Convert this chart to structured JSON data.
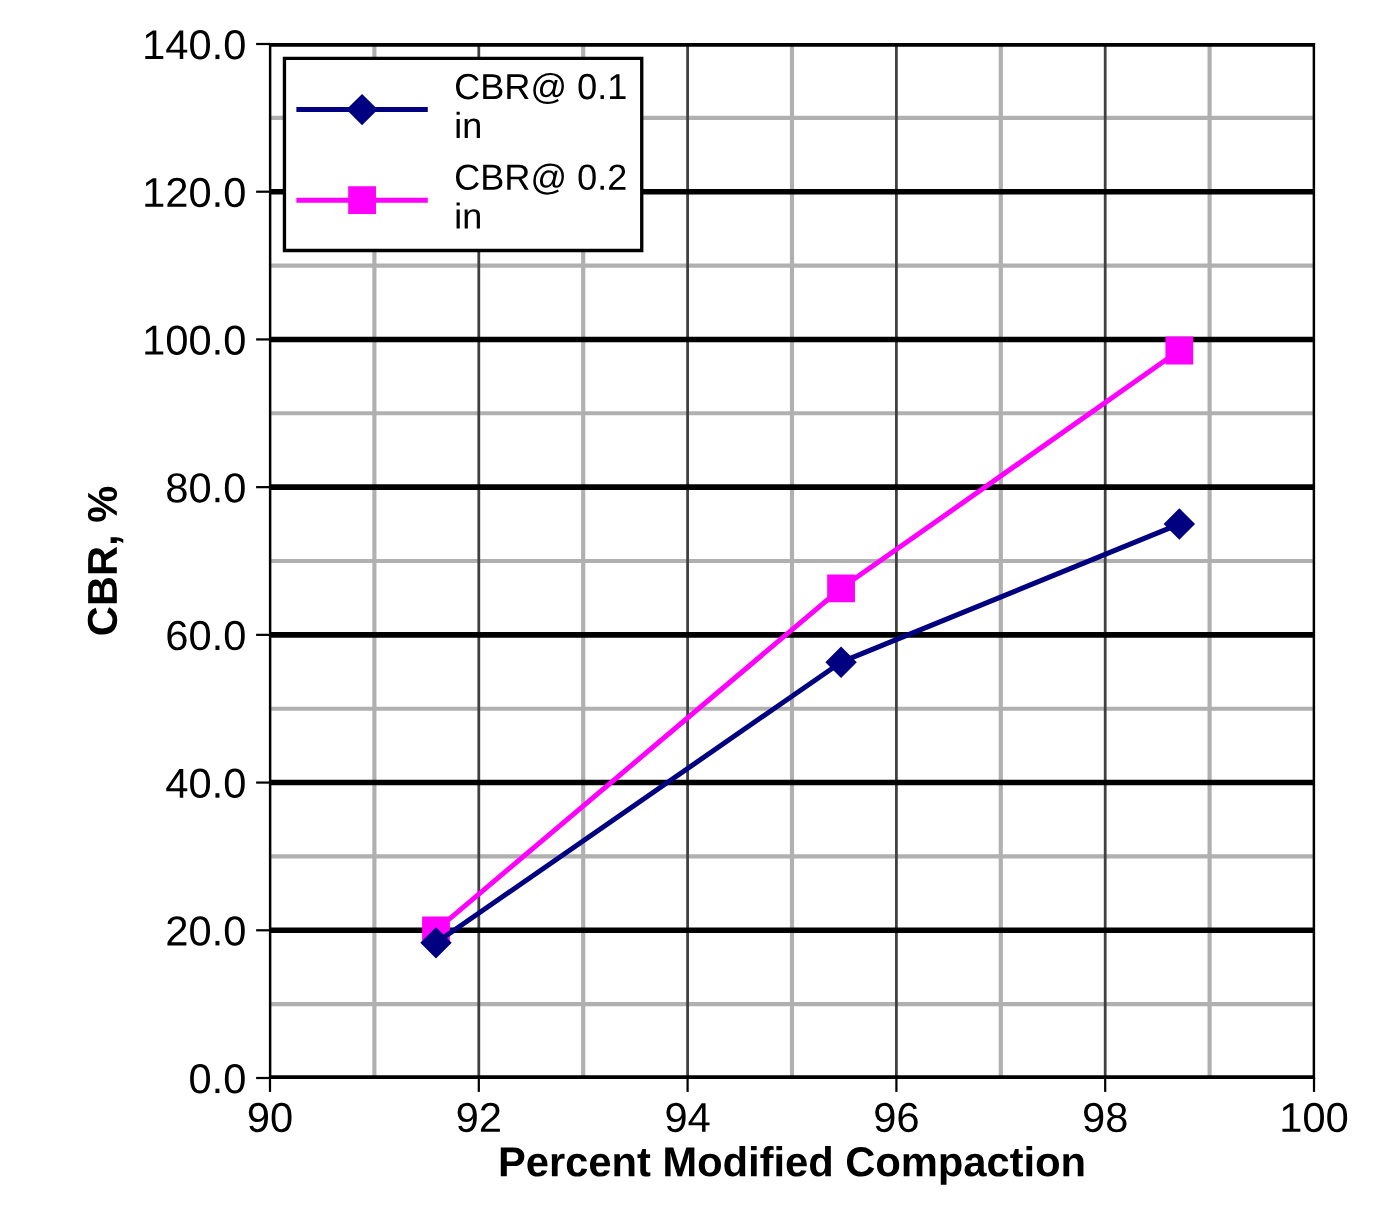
{
  "chart_data": {
    "type": "line",
    "xlabel": "Percent Modified Compaction",
    "ylabel": "CBR, %",
    "x": [
      91.59,
      95.47,
      98.71
    ],
    "series": [
      {
        "name": "CBR@ 0.1\nin",
        "color": "#000080",
        "values": [
          18.3,
          56.3,
          75.0
        ],
        "marker": "diamond"
      },
      {
        "name": "CBR@ 0.2\nin",
        "color": "#ff00ff",
        "values": [
          20.0,
          66.3,
          98.5
        ],
        "marker": "square"
      }
    ],
    "xlim": [
      90,
      100
    ],
    "xticks": [
      90,
      92,
      94,
      96,
      98,
      100
    ],
    "ylim": [
      0,
      140
    ],
    "yticks": [
      {
        "value": 0,
        "label": "0.0"
      },
      {
        "value": 20,
        "label": "20.0"
      },
      {
        "value": 40,
        "label": "40.0"
      },
      {
        "value": 60,
        "label": "60.0"
      },
      {
        "value": 80,
        "label": "80.0"
      },
      {
        "value": 100,
        "label": "100.0"
      },
      {
        "value": 120,
        "label": "120.0"
      },
      {
        "value": 140,
        "label": "140.0"
      }
    ],
    "grid": true,
    "legend": "top left",
    "line_style": "solid"
  }
}
